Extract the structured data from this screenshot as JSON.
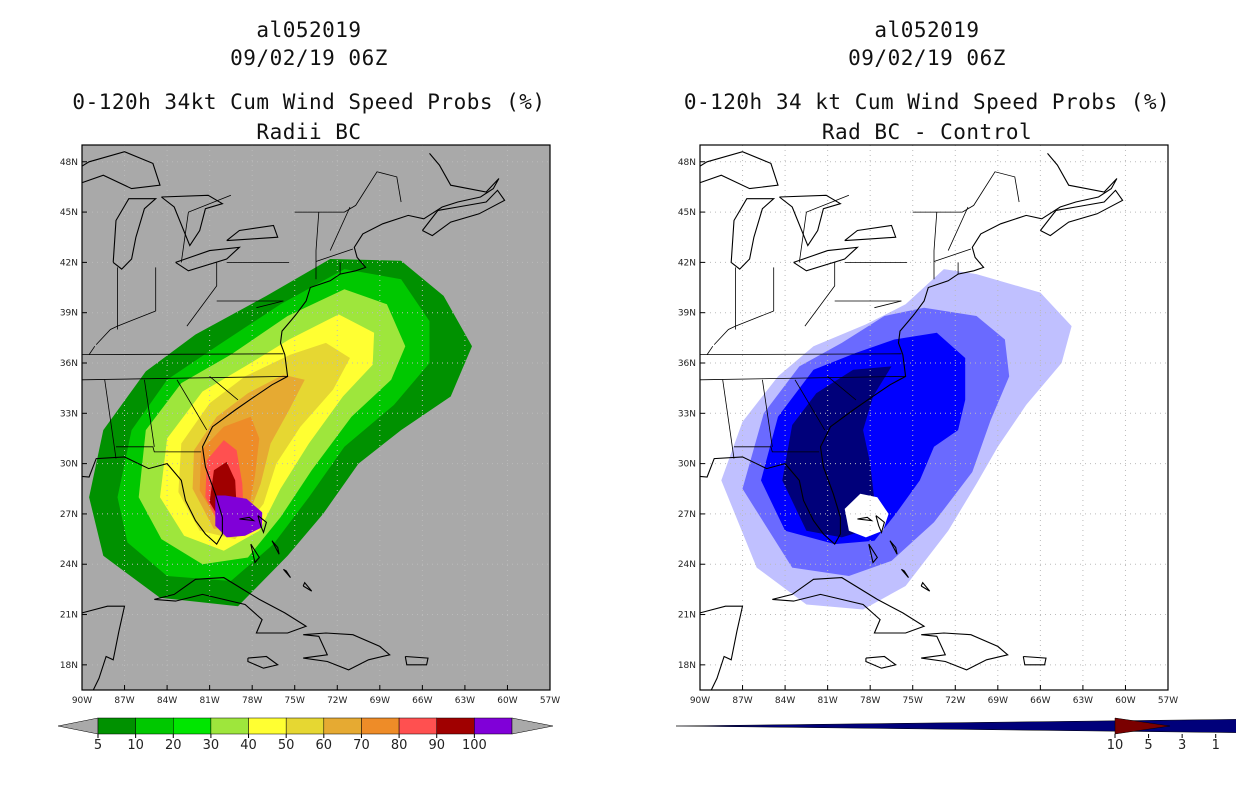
{
  "panels": [
    {
      "id": "left",
      "title_line1": "al052019",
      "title_line2": "09/02/19 06Z",
      "title_line3": "0-120h 34kt Cum Wind Speed Probs (%)",
      "title_line4": "Radii BC",
      "background_color": "#a9a9a9",
      "colorbar": {
        "labels": [
          "5",
          "10",
          "20",
          "30",
          "40",
          "50",
          "60",
          "70",
          "80",
          "90",
          "100"
        ],
        "colors": [
          "#009100",
          "#00c800",
          "#00e600",
          "#9ee63c",
          "#ffff32",
          "#e6d732",
          "#e6aa32",
          "#ee8c28",
          "#ff5050",
          "#a00000",
          "#8000d8"
        ],
        "left_arrow_color": "#a9a9a9",
        "right_arrow_color": "#a9a9a9"
      },
      "contours": [
        {
          "level": 5,
          "color": "#009100"
        },
        {
          "level": 10,
          "color": "#00c800"
        },
        {
          "level": 20,
          "color": "#9ee63c"
        },
        {
          "level": 30,
          "color": "#ffff32"
        },
        {
          "level": 40,
          "color": "#e6d732"
        },
        {
          "level": 50,
          "color": "#e6aa32"
        },
        {
          "level": 60,
          "color": "#ee8c28"
        },
        {
          "level": 70,
          "color": "#ff5050"
        },
        {
          "level": 80,
          "color": "#a00000"
        },
        {
          "level": 90,
          "color": "#8000d8"
        }
      ]
    },
    {
      "id": "right",
      "title_line1": "al052019",
      "title_line2": "09/02/19 06Z",
      "title_line3": "0-120h 34 kt Cum Wind Speed Probs (%)",
      "title_line4": "Rad BC - Control",
      "background_color": "#ffffff",
      "colorbar": {
        "labels": [
          "-10",
          "-5",
          "-3",
          "-1",
          "1",
          "3",
          "5",
          "10"
        ],
        "colors": [
          "#0000ff",
          "#6a6aff",
          "#c0c0ff",
          "#ffffff",
          "#ffc0c0",
          "#ff6a6a",
          "#ff0000"
        ],
        "left_arrow_color": "#00007a",
        "right_arrow_color": "#7a0000"
      },
      "contours": [
        {
          "level": -1,
          "color": "#c0c0ff"
        },
        {
          "level": -3,
          "color": "#6a6aff"
        },
        {
          "level": -5,
          "color": "#0000ff"
        },
        {
          "level": -10,
          "color": "#00007a"
        }
      ]
    }
  ],
  "axes": {
    "lon_labels": [
      "90W",
      "87W",
      "84W",
      "81W",
      "78W",
      "75W",
      "72W",
      "69W",
      "66W",
      "63W",
      "60W",
      "57W"
    ],
    "lat_labels": [
      "18N",
      "21N",
      "24N",
      "27N",
      "30N",
      "33N",
      "36N",
      "39N",
      "42N",
      "45N",
      "48N"
    ],
    "lon_range": [
      -90,
      -57
    ],
    "lat_range": [
      16.5,
      49
    ]
  }
}
